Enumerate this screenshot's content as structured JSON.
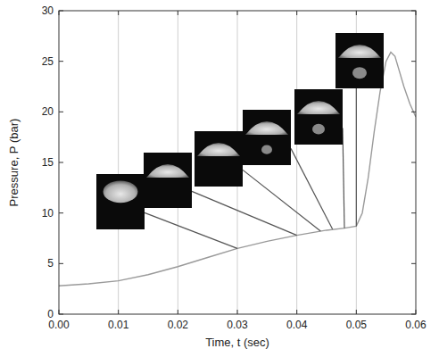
{
  "chart_data": {
    "type": "line",
    "x_label": "Time, t (sec)",
    "y_label": "Pressure, P (bar)",
    "x": [
      0,
      0.005,
      0.01,
      0.015,
      0.02,
      0.025,
      0.03,
      0.035,
      0.04,
      0.045,
      0.048,
      0.05,
      0.051,
      0.052,
      0.053,
      0.054,
      0.055,
      0.0558,
      0.0565,
      0.057,
      0.058,
      0.059,
      0.06
    ],
    "values": [
      2.8,
      3.0,
      3.3,
      3.9,
      4.7,
      5.6,
      6.5,
      7.2,
      7.8,
      8.3,
      8.5,
      8.7,
      10,
      13.5,
      18,
      22,
      25,
      25.9,
      25.5,
      24.5,
      22.5,
      20.8,
      19.5
    ],
    "color": "#9a9a9a",
    "frames": {
      "x": [
        0.03,
        0.04,
        0.044,
        0.046,
        0.048,
        0.05
      ],
      "y": [
        6.5,
        7.8,
        8.2,
        8.4,
        8.5,
        8.7
      ]
    },
    "xlim": [
      0,
      0.06
    ],
    "ylim": [
      0,
      30
    ],
    "xticks": [
      {
        "value": 0,
        "label": "0.00"
      },
      0.01,
      0.02,
      0.03,
      0.04,
      0.05,
      0.06
    ],
    "yticks": [
      0,
      5,
      10,
      15,
      20,
      25,
      30
    ],
    "grid": "x"
  }
}
